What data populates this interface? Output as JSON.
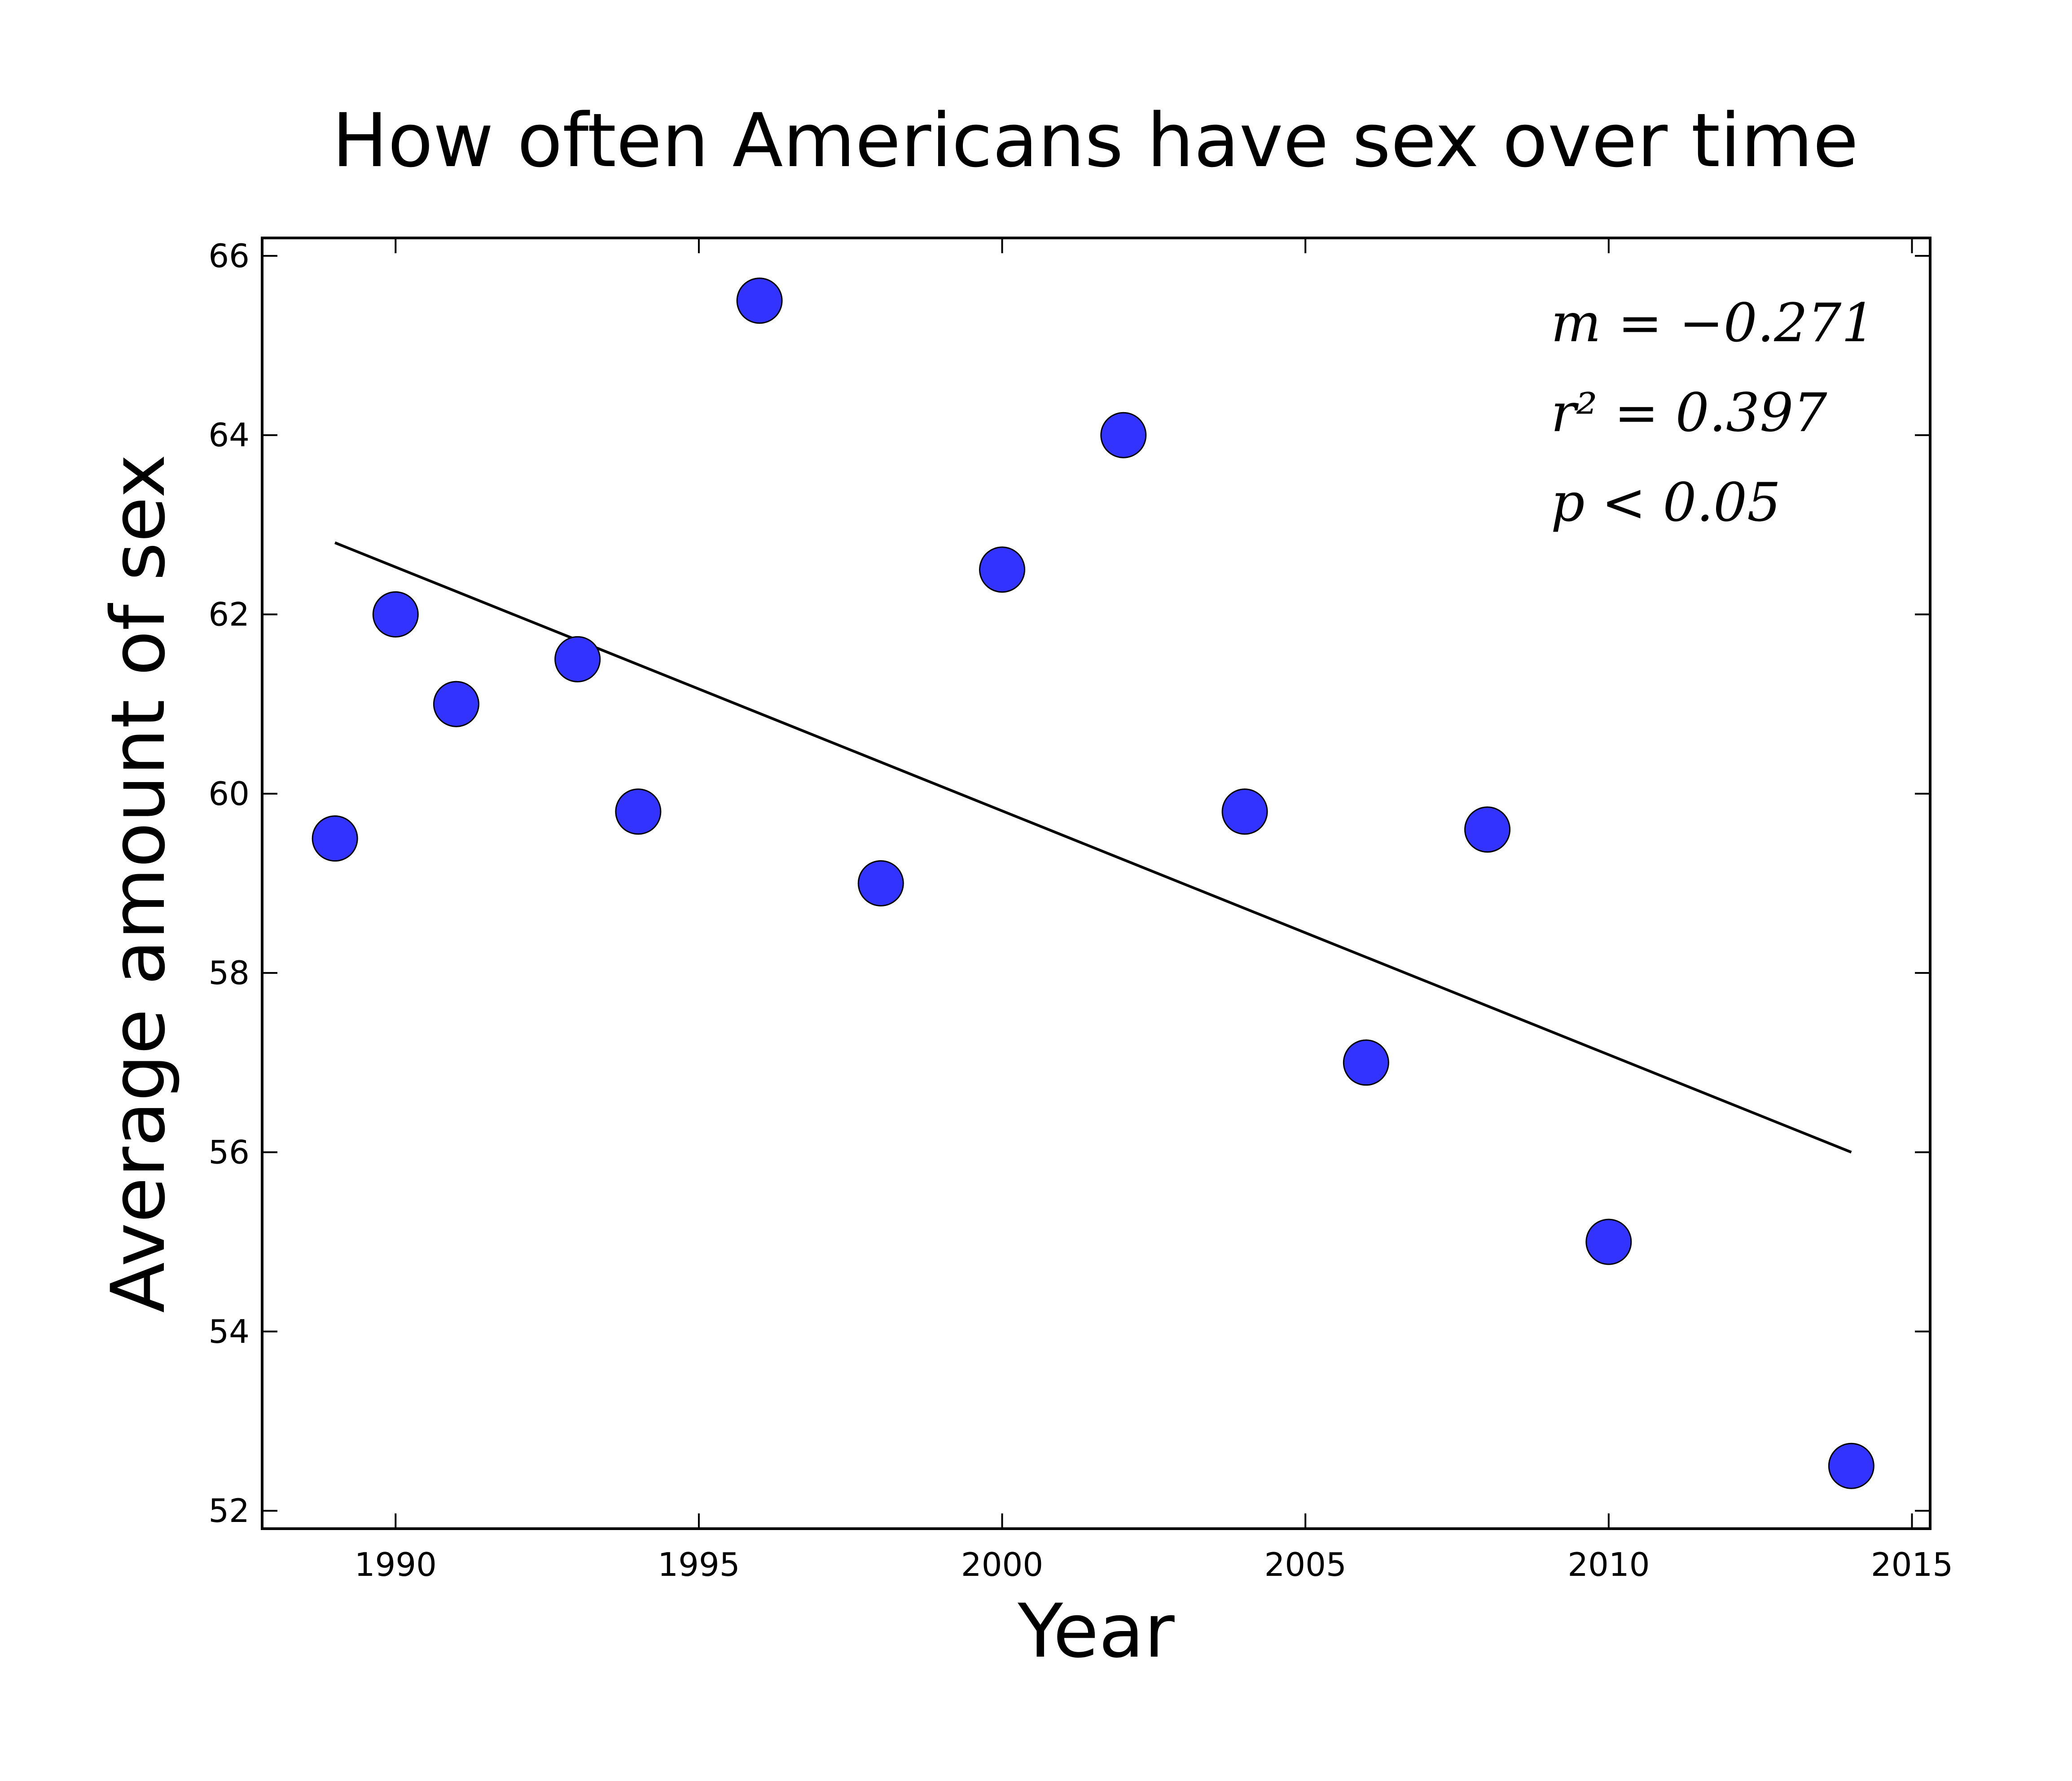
{
  "chart_data": {
    "type": "scatter",
    "title": "How often Americans have sex over time",
    "xlabel": "Year",
    "ylabel": "Average amount of sex",
    "xlim": [
      1987.8,
      2015.3
    ],
    "ylim": [
      51.8,
      66.2
    ],
    "xticks": [
      1990,
      1995,
      2000,
      2005,
      2010,
      2015
    ],
    "yticks": [
      52,
      54,
      56,
      58,
      60,
      62,
      64,
      66
    ],
    "grid": false,
    "point_color": "#3333ff",
    "line_color": "#000000",
    "series": [
      {
        "x": [
          1989,
          1990,
          1991,
          1993,
          1994,
          1996,
          1998,
          2000,
          2002,
          2004,
          2006,
          2008,
          2010,
          2014
        ],
        "y": [
          59.5,
          62.0,
          61.0,
          61.5,
          59.8,
          65.5,
          59.0,
          62.5,
          64.0,
          59.8,
          57.0,
          59.6,
          55.0,
          52.5
        ]
      }
    ],
    "fit_line": {
      "x": [
        1989,
        2014
      ],
      "y": [
        62.8,
        56.0
      ]
    },
    "annotations": [
      "m = −0.271",
      "r² = 0.397",
      "p < 0.05"
    ]
  }
}
